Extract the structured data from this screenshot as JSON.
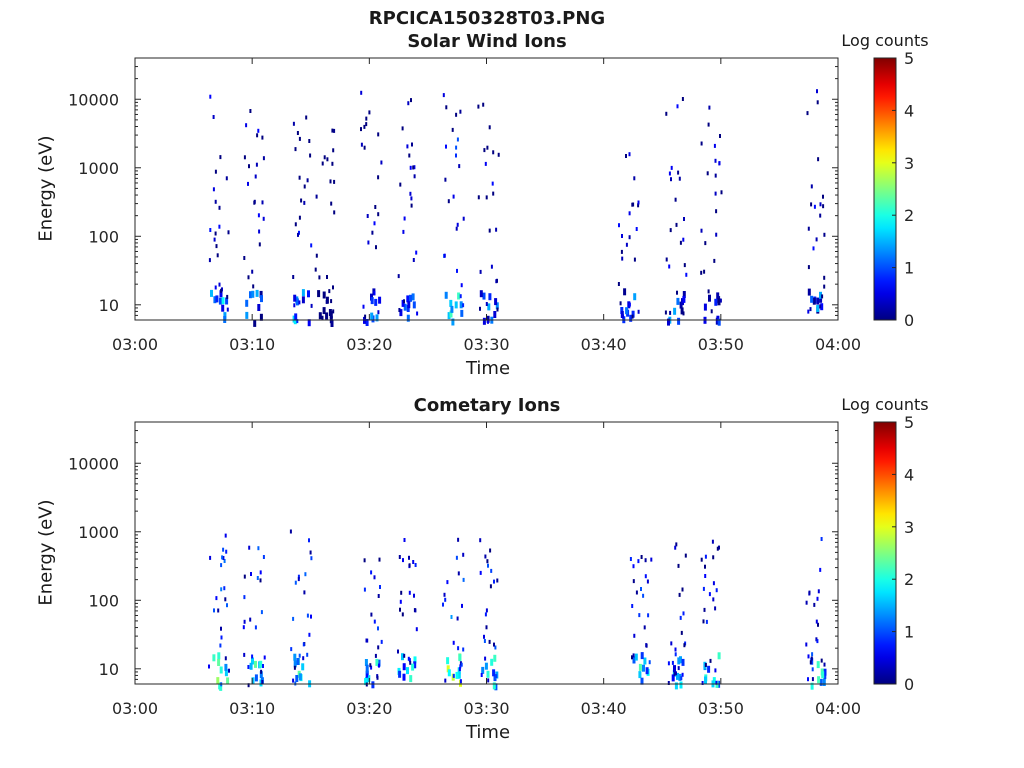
{
  "figure_title": "RPCICA150328T03.PNG",
  "chart_data": [
    {
      "type": "heatmap",
      "title": "Solar Wind Ions",
      "xlabel": "Time",
      "ylabel": "Energy (eV)",
      "x_ticks": [
        "03:00",
        "03:10",
        "03:20",
        "03:30",
        "03:40",
        "03:50",
        "04:00"
      ],
      "xlim": [
        "03:00",
        "04:00"
      ],
      "y_scale": "log",
      "y_ticks": [
        "10",
        "100",
        "1000",
        "10000"
      ],
      "ylim": [
        6,
        40000
      ],
      "colorbar": {
        "label": "Log counts",
        "ticks": [
          "0",
          "1",
          "2",
          "3",
          "4",
          "5"
        ],
        "range": [
          0,
          5
        ],
        "colormap": "jet"
      },
      "bursts": [
        {
          "t": "03:07",
          "e_min": 6,
          "e_max": 12000,
          "peak": 2
        },
        {
          "t": "03:10",
          "e_min": 6,
          "e_max": 8000,
          "peak": 1.5
        },
        {
          "t": "03:14",
          "e_min": 6,
          "e_max": 8000,
          "peak": 1.8
        },
        {
          "t": "03:16",
          "e_min": 6,
          "e_max": 5000,
          "peak": 0.3
        },
        {
          "t": "03:20",
          "e_min": 6,
          "e_max": 14000,
          "peak": 1.5
        },
        {
          "t": "03:23",
          "e_min": 6,
          "e_max": 12000,
          "peak": 1.5
        },
        {
          "t": "03:27",
          "e_min": 6,
          "e_max": 14000,
          "peak": 2.3
        },
        {
          "t": "03:30",
          "e_min": 6,
          "e_max": 12000,
          "peak": 1.5
        },
        {
          "t": "03:42",
          "e_min": 6,
          "e_max": 2000,
          "peak": 1.5
        },
        {
          "t": "03:46",
          "e_min": 6,
          "e_max": 15000,
          "peak": 1.5
        },
        {
          "t": "03:49",
          "e_min": 6,
          "e_max": 9000,
          "peak": 1.2
        },
        {
          "t": "03:58",
          "e_min": 6,
          "e_max": 15000,
          "peak": 1.6
        }
      ]
    },
    {
      "type": "heatmap",
      "title": "Cometary Ions",
      "xlabel": "Time",
      "ylabel": "Energy (eV)",
      "x_ticks": [
        "03:00",
        "03:10",
        "03:20",
        "03:30",
        "03:40",
        "03:50",
        "04:00"
      ],
      "xlim": [
        "03:00",
        "04:00"
      ],
      "y_scale": "log",
      "y_ticks": [
        "10",
        "100",
        "1000",
        "10000"
      ],
      "ylim": [
        6,
        40000
      ],
      "colorbar": {
        "label": "Log counts",
        "ticks": [
          "0",
          "1",
          "2",
          "3",
          "4",
          "5"
        ],
        "range": [
          0,
          5
        ],
        "colormap": "jet"
      },
      "bursts": [
        {
          "t": "03:07",
          "e_min": 6,
          "e_max": 1000,
          "peak": 2.8
        },
        {
          "t": "03:10",
          "e_min": 6,
          "e_max": 900,
          "peak": 2.5
        },
        {
          "t": "03:14",
          "e_min": 6,
          "e_max": 1200,
          "peak": 2.6
        },
        {
          "t": "03:20",
          "e_min": 6,
          "e_max": 500,
          "peak": 2.2
        },
        {
          "t": "03:23",
          "e_min": 6,
          "e_max": 1000,
          "peak": 2.2
        },
        {
          "t": "03:27",
          "e_min": 6,
          "e_max": 900,
          "peak": 3.1
        },
        {
          "t": "03:30",
          "e_min": 6,
          "e_max": 1100,
          "peak": 2.3
        },
        {
          "t": "03:43",
          "e_min": 6,
          "e_max": 600,
          "peak": 2.3
        },
        {
          "t": "03:46",
          "e_min": 6,
          "e_max": 900,
          "peak": 2.0
        },
        {
          "t": "03:49",
          "e_min": 6,
          "e_max": 1000,
          "peak": 2.2
        },
        {
          "t": "03:58",
          "e_min": 6,
          "e_max": 900,
          "peak": 2.4
        }
      ]
    }
  ]
}
